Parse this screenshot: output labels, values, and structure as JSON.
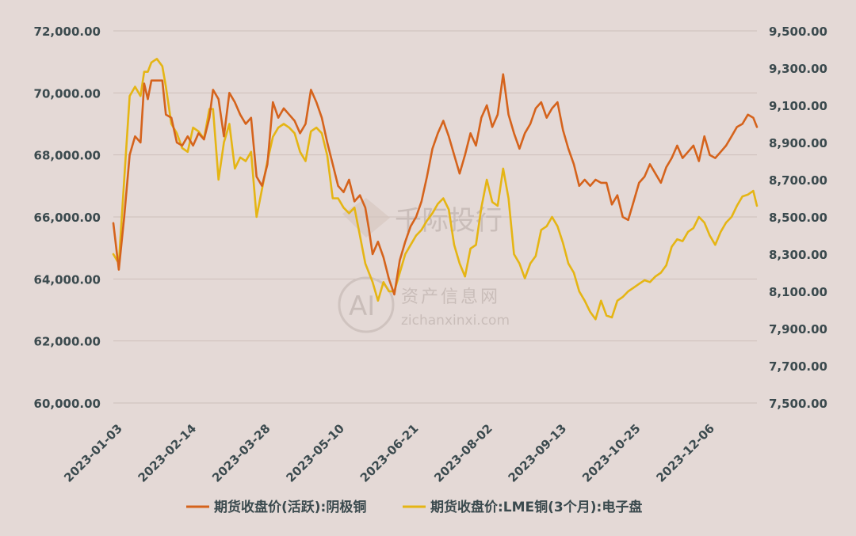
{
  "chart_data": {
    "type": "line",
    "title": "",
    "watermark": {
      "brand_cn": "千际投行",
      "site_cn": "资产信息网",
      "site_url": "zichanxinxi.com",
      "logo_text": "AI"
    },
    "x_tick_labels": [
      "2023-01-03",
      "2023-02-14",
      "2023-03-28",
      "2023-05-10",
      "2023-06-21",
      "2023-08-02",
      "2023-09-13",
      "2023-10-25",
      "2023-12-06"
    ],
    "left_axis": {
      "ylim": [
        60000,
        72000
      ],
      "ticks": [
        60000,
        62000,
        64000,
        66000,
        68000,
        70000,
        72000
      ],
      "tick_labels": [
        "60,000.00",
        "62,000.00",
        "64,000.00",
        "66,000.00",
        "68,000.00",
        "70,000.00",
        "72,000.00"
      ]
    },
    "right_axis": {
      "ylim": [
        7500,
        9500
      ],
      "ticks": [
        7500,
        7700,
        7900,
        8100,
        8300,
        8500,
        8700,
        8900,
        9100,
        9300,
        9500
      ],
      "tick_labels": [
        "7,500.00",
        "7,700.00",
        "7,900.00",
        "8,100.00",
        "8,300.00",
        "8,500.00",
        "8,700.00",
        "8,900.00",
        "9,100.00",
        "9,300.00",
        "9,500.00"
      ]
    },
    "series": [
      {
        "name": "期货收盘价(活跃):阴极铜",
        "axis": "left",
        "color": "#d5631c",
        "points": [
          [
            0,
            65800
          ],
          [
            3,
            64300
          ],
          [
            6,
            66000
          ],
          [
            9,
            68000
          ],
          [
            12,
            68600
          ],
          [
            15,
            68400
          ],
          [
            17,
            70300
          ],
          [
            19,
            69800
          ],
          [
            21,
            70400
          ],
          [
            24,
            70400
          ],
          [
            27,
            70400
          ],
          [
            29,
            69300
          ],
          [
            32,
            69200
          ],
          [
            35,
            68400
          ],
          [
            38,
            68300
          ],
          [
            41,
            68600
          ],
          [
            44,
            68300
          ],
          [
            47,
            68700
          ],
          [
            50,
            68500
          ],
          [
            53,
            69200
          ],
          [
            55,
            70100
          ],
          [
            58,
            69800
          ],
          [
            61,
            68600
          ],
          [
            64,
            70000
          ],
          [
            67,
            69700
          ],
          [
            70,
            69300
          ],
          [
            73,
            69000
          ],
          [
            76,
            69200
          ],
          [
            79,
            67300
          ],
          [
            82,
            67000
          ],
          [
            85,
            67700
          ],
          [
            88,
            69700
          ],
          [
            91,
            69200
          ],
          [
            94,
            69500
          ],
          [
            97,
            69300
          ],
          [
            100,
            69100
          ],
          [
            103,
            68700
          ],
          [
            106,
            69000
          ],
          [
            109,
            70100
          ],
          [
            112,
            69700
          ],
          [
            115,
            69200
          ],
          [
            118,
            68400
          ],
          [
            121,
            67700
          ],
          [
            124,
            67000
          ],
          [
            127,
            66800
          ],
          [
            130,
            67200
          ],
          [
            133,
            66500
          ],
          [
            136,
            66700
          ],
          [
            139,
            66300
          ],
          [
            141,
            65600
          ],
          [
            143,
            64800
          ],
          [
            146,
            65200
          ],
          [
            149,
            64700
          ],
          [
            152,
            64000
          ],
          [
            155,
            63500
          ],
          [
            158,
            64600
          ],
          [
            161,
            65200
          ],
          [
            164,
            65700
          ],
          [
            167,
            66000
          ],
          [
            170,
            66500
          ],
          [
            173,
            67300
          ],
          [
            176,
            68200
          ],
          [
            179,
            68700
          ],
          [
            182,
            69100
          ],
          [
            185,
            68600
          ],
          [
            188,
            68000
          ],
          [
            191,
            67400
          ],
          [
            194,
            68000
          ],
          [
            197,
            68700
          ],
          [
            200,
            68300
          ],
          [
            203,
            69200
          ],
          [
            206,
            69600
          ],
          [
            209,
            68900
          ],
          [
            212,
            69300
          ],
          [
            215,
            70600
          ],
          [
            218,
            69300
          ],
          [
            221,
            68700
          ],
          [
            224,
            68200
          ],
          [
            227,
            68700
          ],
          [
            230,
            69000
          ],
          [
            233,
            69500
          ],
          [
            236,
            69700
          ],
          [
            239,
            69200
          ],
          [
            242,
            69500
          ],
          [
            245,
            69700
          ],
          [
            248,
            68800
          ],
          [
            251,
            68200
          ],
          [
            254,
            67700
          ],
          [
            257,
            67000
          ],
          [
            260,
            67200
          ],
          [
            263,
            67000
          ],
          [
            266,
            67200
          ],
          [
            269,
            67100
          ],
          [
            272,
            67100
          ],
          [
            275,
            66400
          ],
          [
            278,
            66700
          ],
          [
            281,
            66000
          ],
          [
            284,
            65900
          ],
          [
            287,
            66500
          ],
          [
            290,
            67100
          ],
          [
            293,
            67300
          ],
          [
            296,
            67700
          ],
          [
            299,
            67400
          ],
          [
            302,
            67100
          ],
          [
            305,
            67600
          ],
          [
            308,
            67900
          ],
          [
            311,
            68300
          ],
          [
            314,
            67900
          ],
          [
            317,
            68100
          ],
          [
            320,
            68300
          ],
          [
            323,
            67800
          ],
          [
            326,
            68600
          ],
          [
            329,
            68000
          ],
          [
            332,
            67900
          ],
          [
            335,
            68100
          ],
          [
            338,
            68300
          ],
          [
            341,
            68600
          ],
          [
            344,
            68900
          ],
          [
            347,
            69000
          ],
          [
            350,
            69300
          ],
          [
            353,
            69200
          ],
          [
            355,
            68900
          ]
        ]
      },
      {
        "name": "期货收盘价:LME铜(3个月):电子盘",
        "axis": "right",
        "color": "#e5b514",
        "points": [
          [
            0,
            8300
          ],
          [
            3,
            8250
          ],
          [
            6,
            8700
          ],
          [
            9,
            9150
          ],
          [
            12,
            9200
          ],
          [
            15,
            9150
          ],
          [
            17,
            9280
          ],
          [
            19,
            9280
          ],
          [
            21,
            9330
          ],
          [
            24,
            9350
          ],
          [
            27,
            9310
          ],
          [
            29,
            9200
          ],
          [
            32,
            9000
          ],
          [
            35,
            8950
          ],
          [
            38,
            8870
          ],
          [
            41,
            8850
          ],
          [
            44,
            8980
          ],
          [
            47,
            8960
          ],
          [
            50,
            8920
          ],
          [
            53,
            9080
          ],
          [
            55,
            9080
          ],
          [
            58,
            8700
          ],
          [
            61,
            8900
          ],
          [
            64,
            9000
          ],
          [
            67,
            8760
          ],
          [
            70,
            8820
          ],
          [
            73,
            8800
          ],
          [
            76,
            8850
          ],
          [
            79,
            8500
          ],
          [
            82,
            8650
          ],
          [
            85,
            8800
          ],
          [
            88,
            8930
          ],
          [
            91,
            8980
          ],
          [
            94,
            9000
          ],
          [
            97,
            8980
          ],
          [
            100,
            8950
          ],
          [
            103,
            8850
          ],
          [
            106,
            8800
          ],
          [
            109,
            8960
          ],
          [
            112,
            8980
          ],
          [
            115,
            8950
          ],
          [
            118,
            8830
          ],
          [
            121,
            8600
          ],
          [
            124,
            8600
          ],
          [
            127,
            8550
          ],
          [
            130,
            8520
          ],
          [
            133,
            8550
          ],
          [
            136,
            8400
          ],
          [
            139,
            8250
          ],
          [
            141,
            8200
          ],
          [
            143,
            8150
          ],
          [
            146,
            8050
          ],
          [
            149,
            8150
          ],
          [
            152,
            8100
          ],
          [
            155,
            8100
          ],
          [
            158,
            8200
          ],
          [
            161,
            8300
          ],
          [
            164,
            8350
          ],
          [
            167,
            8400
          ],
          [
            170,
            8430
          ],
          [
            173,
            8480
          ],
          [
            176,
            8520
          ],
          [
            179,
            8570
          ],
          [
            182,
            8600
          ],
          [
            185,
            8540
          ],
          [
            188,
            8350
          ],
          [
            191,
            8250
          ],
          [
            194,
            8180
          ],
          [
            197,
            8330
          ],
          [
            200,
            8350
          ],
          [
            203,
            8550
          ],
          [
            206,
            8700
          ],
          [
            209,
            8580
          ],
          [
            212,
            8560
          ],
          [
            215,
            8760
          ],
          [
            218,
            8600
          ],
          [
            221,
            8300
          ],
          [
            224,
            8250
          ],
          [
            227,
            8170
          ],
          [
            230,
            8250
          ],
          [
            233,
            8290
          ],
          [
            236,
            8430
          ],
          [
            239,
            8450
          ],
          [
            242,
            8500
          ],
          [
            245,
            8450
          ],
          [
            248,
            8360
          ],
          [
            251,
            8250
          ],
          [
            254,
            8200
          ],
          [
            257,
            8100
          ],
          [
            260,
            8050
          ],
          [
            263,
            7990
          ],
          [
            266,
            7950
          ],
          [
            269,
            8050
          ],
          [
            272,
            7970
          ],
          [
            275,
            7960
          ],
          [
            278,
            8050
          ],
          [
            281,
            8070
          ],
          [
            284,
            8100
          ],
          [
            287,
            8120
          ],
          [
            290,
            8140
          ],
          [
            293,
            8160
          ],
          [
            296,
            8150
          ],
          [
            299,
            8180
          ],
          [
            302,
            8200
          ],
          [
            305,
            8240
          ],
          [
            308,
            8340
          ],
          [
            311,
            8380
          ],
          [
            314,
            8370
          ],
          [
            317,
            8420
          ],
          [
            320,
            8440
          ],
          [
            323,
            8500
          ],
          [
            326,
            8470
          ],
          [
            329,
            8400
          ],
          [
            332,
            8350
          ],
          [
            335,
            8420
          ],
          [
            338,
            8470
          ],
          [
            341,
            8500
          ],
          [
            344,
            8560
          ],
          [
            347,
            8610
          ],
          [
            350,
            8620
          ],
          [
            353,
            8640
          ],
          [
            355,
            8560
          ]
        ]
      }
    ],
    "legend": {
      "position": "bottom-center",
      "entries": [
        "期货收盘价(活跃):阴极铜",
        "期货收盘价:LME铜(3个月):电子盘"
      ]
    }
  }
}
